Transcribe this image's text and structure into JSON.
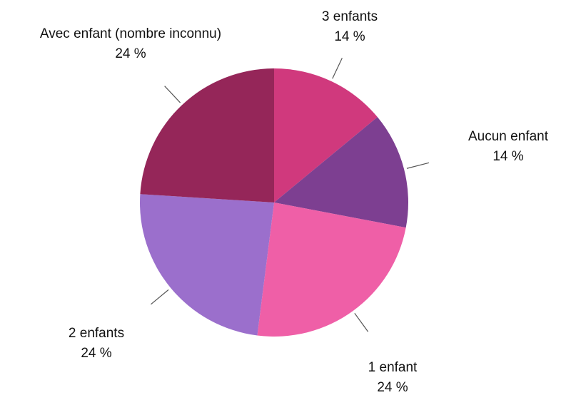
{
  "chart_data": {
    "type": "pie",
    "categories": [
      "3 enfants",
      "Aucun enfant",
      "1 enfant",
      "2 enfants",
      "Avec enfant (nombre inconnu)"
    ],
    "values": [
      14,
      14,
      24,
      24,
      24
    ],
    "value_labels": [
      "14 %",
      "14 %",
      "24 %",
      "24 %",
      "24 %"
    ],
    "colors": [
      "#d0397d",
      "#7d3f91",
      "#ef5fa7",
      "#9b6fcc",
      "#952659"
    ]
  }
}
